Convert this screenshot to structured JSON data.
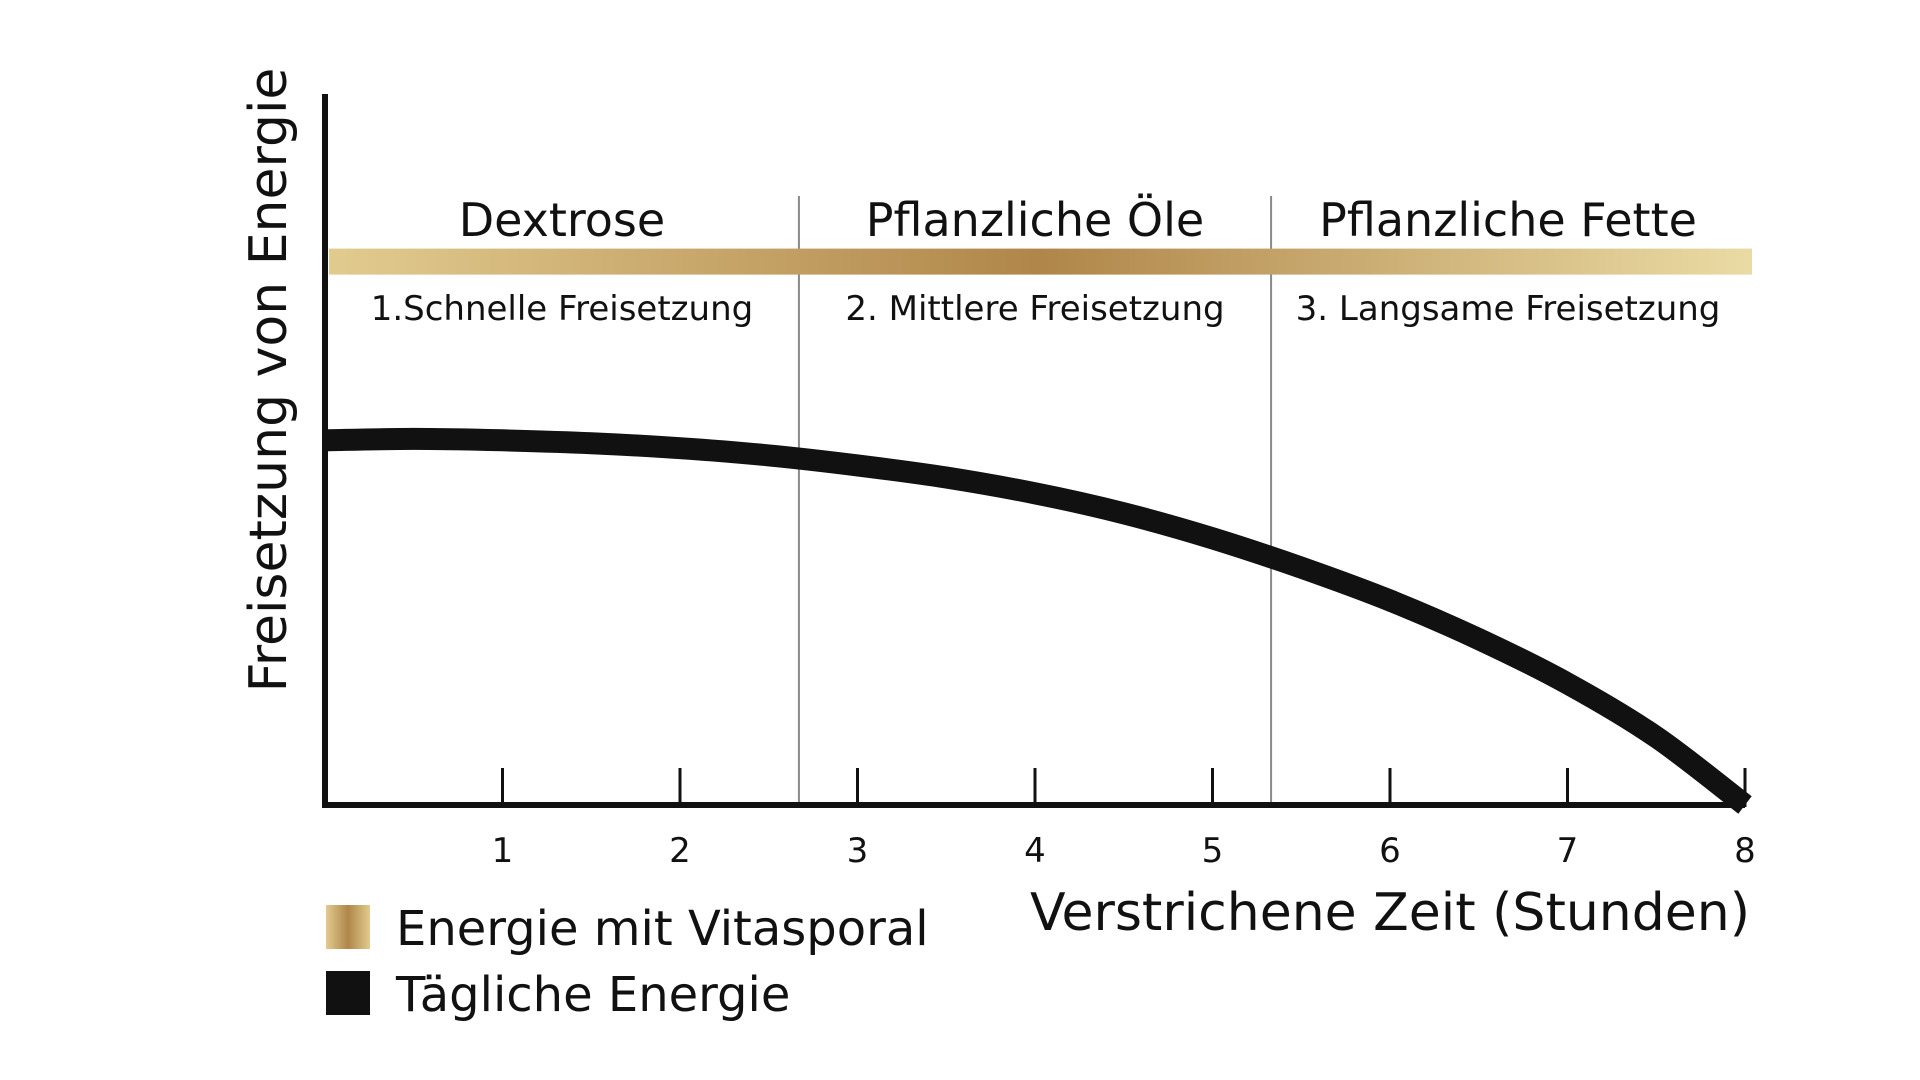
{
  "chart_data": {
    "type": "line",
    "xlabel": "Verstrichene Zeit (Stunden)",
    "ylabel": "Freisetzung von Energie",
    "x_ticks": [
      "1",
      "2",
      "3",
      "4",
      "5",
      "6",
      "7",
      "8"
    ],
    "xlim": [
      0,
      8
    ],
    "ylim": [
      0,
      1
    ],
    "grid": false,
    "legend_position": "bottom-left",
    "phases": [
      {
        "name": "Dextrose",
        "description": "1.Schnelle Freisetzung",
        "x_start": 0,
        "x_end": 2.67
      },
      {
        "name": "Pflanzliche Öle",
        "description": "2. Mittlere Freisetzung",
        "x_start": 2.67,
        "x_end": 5.33
      },
      {
        "name": "Pflanzliche Fette",
        "description": "3. Langsame Freisetzung",
        "x_start": 5.33,
        "x_end": 8
      }
    ],
    "series": [
      {
        "name": "Energie mit Vitasporal",
        "style": "gold-band",
        "colors": [
          "#e2cb8f",
          "#b0864a",
          "#eadba4"
        ],
        "x": [
          0,
          8
        ],
        "y": [
          0.76,
          0.76
        ]
      },
      {
        "name": "Tägliche Energie",
        "style": "thick-line",
        "color": "#111111",
        "x": [
          0,
          0.5,
          1,
          1.5,
          2,
          2.5,
          3,
          3.5,
          4,
          4.5,
          5,
          5.5,
          6,
          6.5,
          7,
          7.5,
          8
        ],
        "y": [
          0.51,
          0.512,
          0.51,
          0.506,
          0.499,
          0.489,
          0.475,
          0.458,
          0.436,
          0.408,
          0.373,
          0.332,
          0.286,
          0.232,
          0.17,
          0.095,
          0.0
        ]
      }
    ]
  }
}
